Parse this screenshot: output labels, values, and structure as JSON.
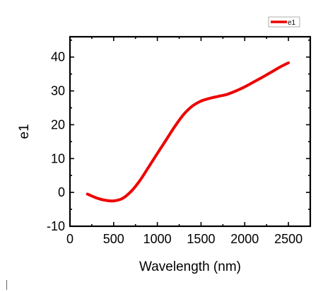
{
  "chart_data": {
    "type": "line",
    "title": "",
    "xlabel": "Wavelength (nm)",
    "ylabel": "e1",
    "xlim": [
      0,
      2750
    ],
    "ylim": [
      -10,
      46
    ],
    "x_ticks": [
      0,
      500,
      1000,
      1500,
      2000,
      2500
    ],
    "y_ticks": [
      -10,
      0,
      10,
      20,
      30,
      40
    ],
    "x_tick_labels": [
      "0",
      "500",
      "1000",
      "1500",
      "2000",
      "2500"
    ],
    "y_tick_labels": [
      "-10",
      "0",
      "10",
      "20",
      "30",
      "40"
    ],
    "grid": false,
    "legend": {
      "position": "top-right",
      "entries": [
        "e1"
      ]
    },
    "series": [
      {
        "name": "e1",
        "color": "#ee0000",
        "x": [
          200,
          300,
          400,
          500,
          600,
          700,
          800,
          900,
          1000,
          1100,
          1200,
          1300,
          1400,
          1500,
          1600,
          1700,
          1800,
          1900,
          2000,
          2100,
          2200,
          2300,
          2400,
          2500
        ],
        "y": [
          -0.5,
          -1.6,
          -2.3,
          -2.5,
          -1.8,
          0.3,
          3.5,
          7.5,
          11.5,
          15.5,
          19.5,
          23.0,
          25.5,
          27.0,
          27.8,
          28.4,
          29.0,
          30.0,
          31.2,
          32.6,
          34.0,
          35.5,
          37.0,
          38.3
        ]
      }
    ]
  }
}
